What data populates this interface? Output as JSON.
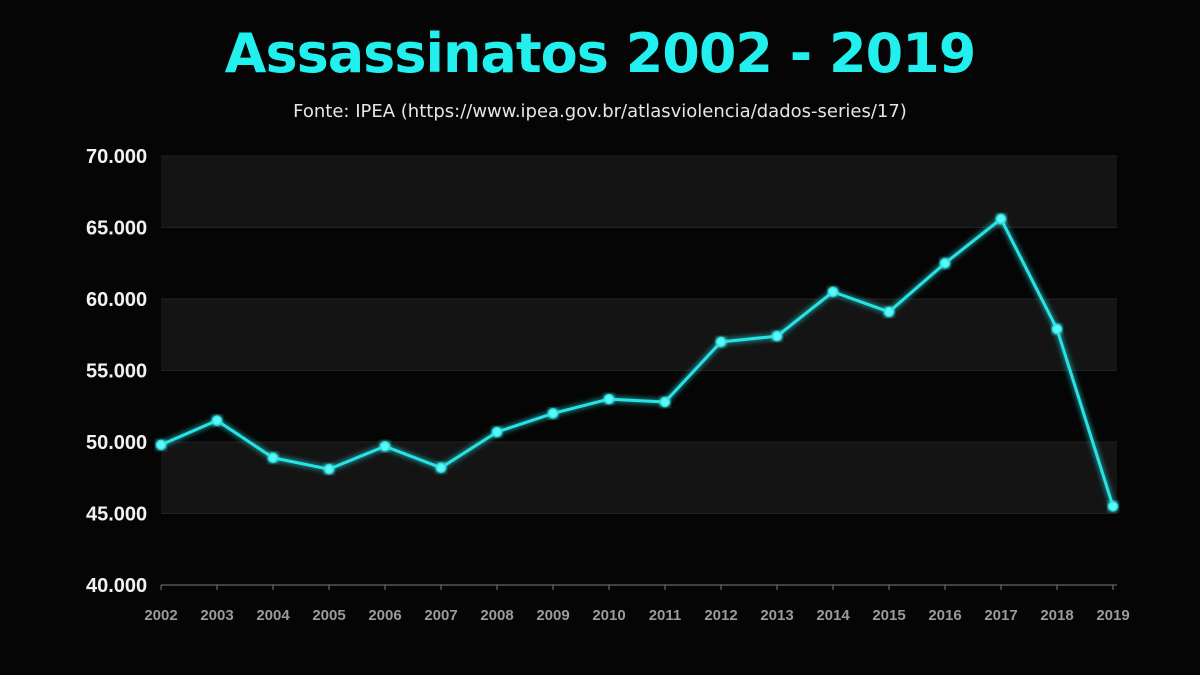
{
  "header": {
    "title": "Assassinatos 2002 - 2019",
    "subtitle": "Fonte: IPEA (https://www.ipea.gov.br/atlasviolencia/dados-series/17)"
  },
  "colors": {
    "background": "#050505",
    "title": "#22f0ee",
    "line": "#27e3e6",
    "band": "#141414"
  },
  "chart_data": {
    "type": "line",
    "title": "Assassinatos 2002 - 2019",
    "subtitle": "Fonte: IPEA (https://www.ipea.gov.br/atlasviolencia/dados-series/17)",
    "xlabel": "",
    "ylabel": "",
    "ylim": [
      40000,
      70000
    ],
    "yticks": [
      40000,
      45000,
      50000,
      55000,
      60000,
      65000,
      70000
    ],
    "ytick_labels": [
      "40.000",
      "45.000",
      "50.000",
      "55.000",
      "60.000",
      "65.000",
      "70.000"
    ],
    "categories": [
      "2002",
      "2003",
      "2004",
      "2005",
      "2006",
      "2007",
      "2008",
      "2009",
      "2010",
      "2011",
      "2012",
      "2013",
      "2014",
      "2015",
      "2016",
      "2017",
      "2018",
      "2019"
    ],
    "series": [
      {
        "values": [
          49800,
          51500,
          48900,
          48100,
          49700,
          48200,
          50700,
          52000,
          53000,
          52800,
          57000,
          57400,
          60500,
          59100,
          62500,
          65600,
          57900,
          45500
        ]
      }
    ],
    "grid": "alternating horizontal bands",
    "legend": "none"
  }
}
